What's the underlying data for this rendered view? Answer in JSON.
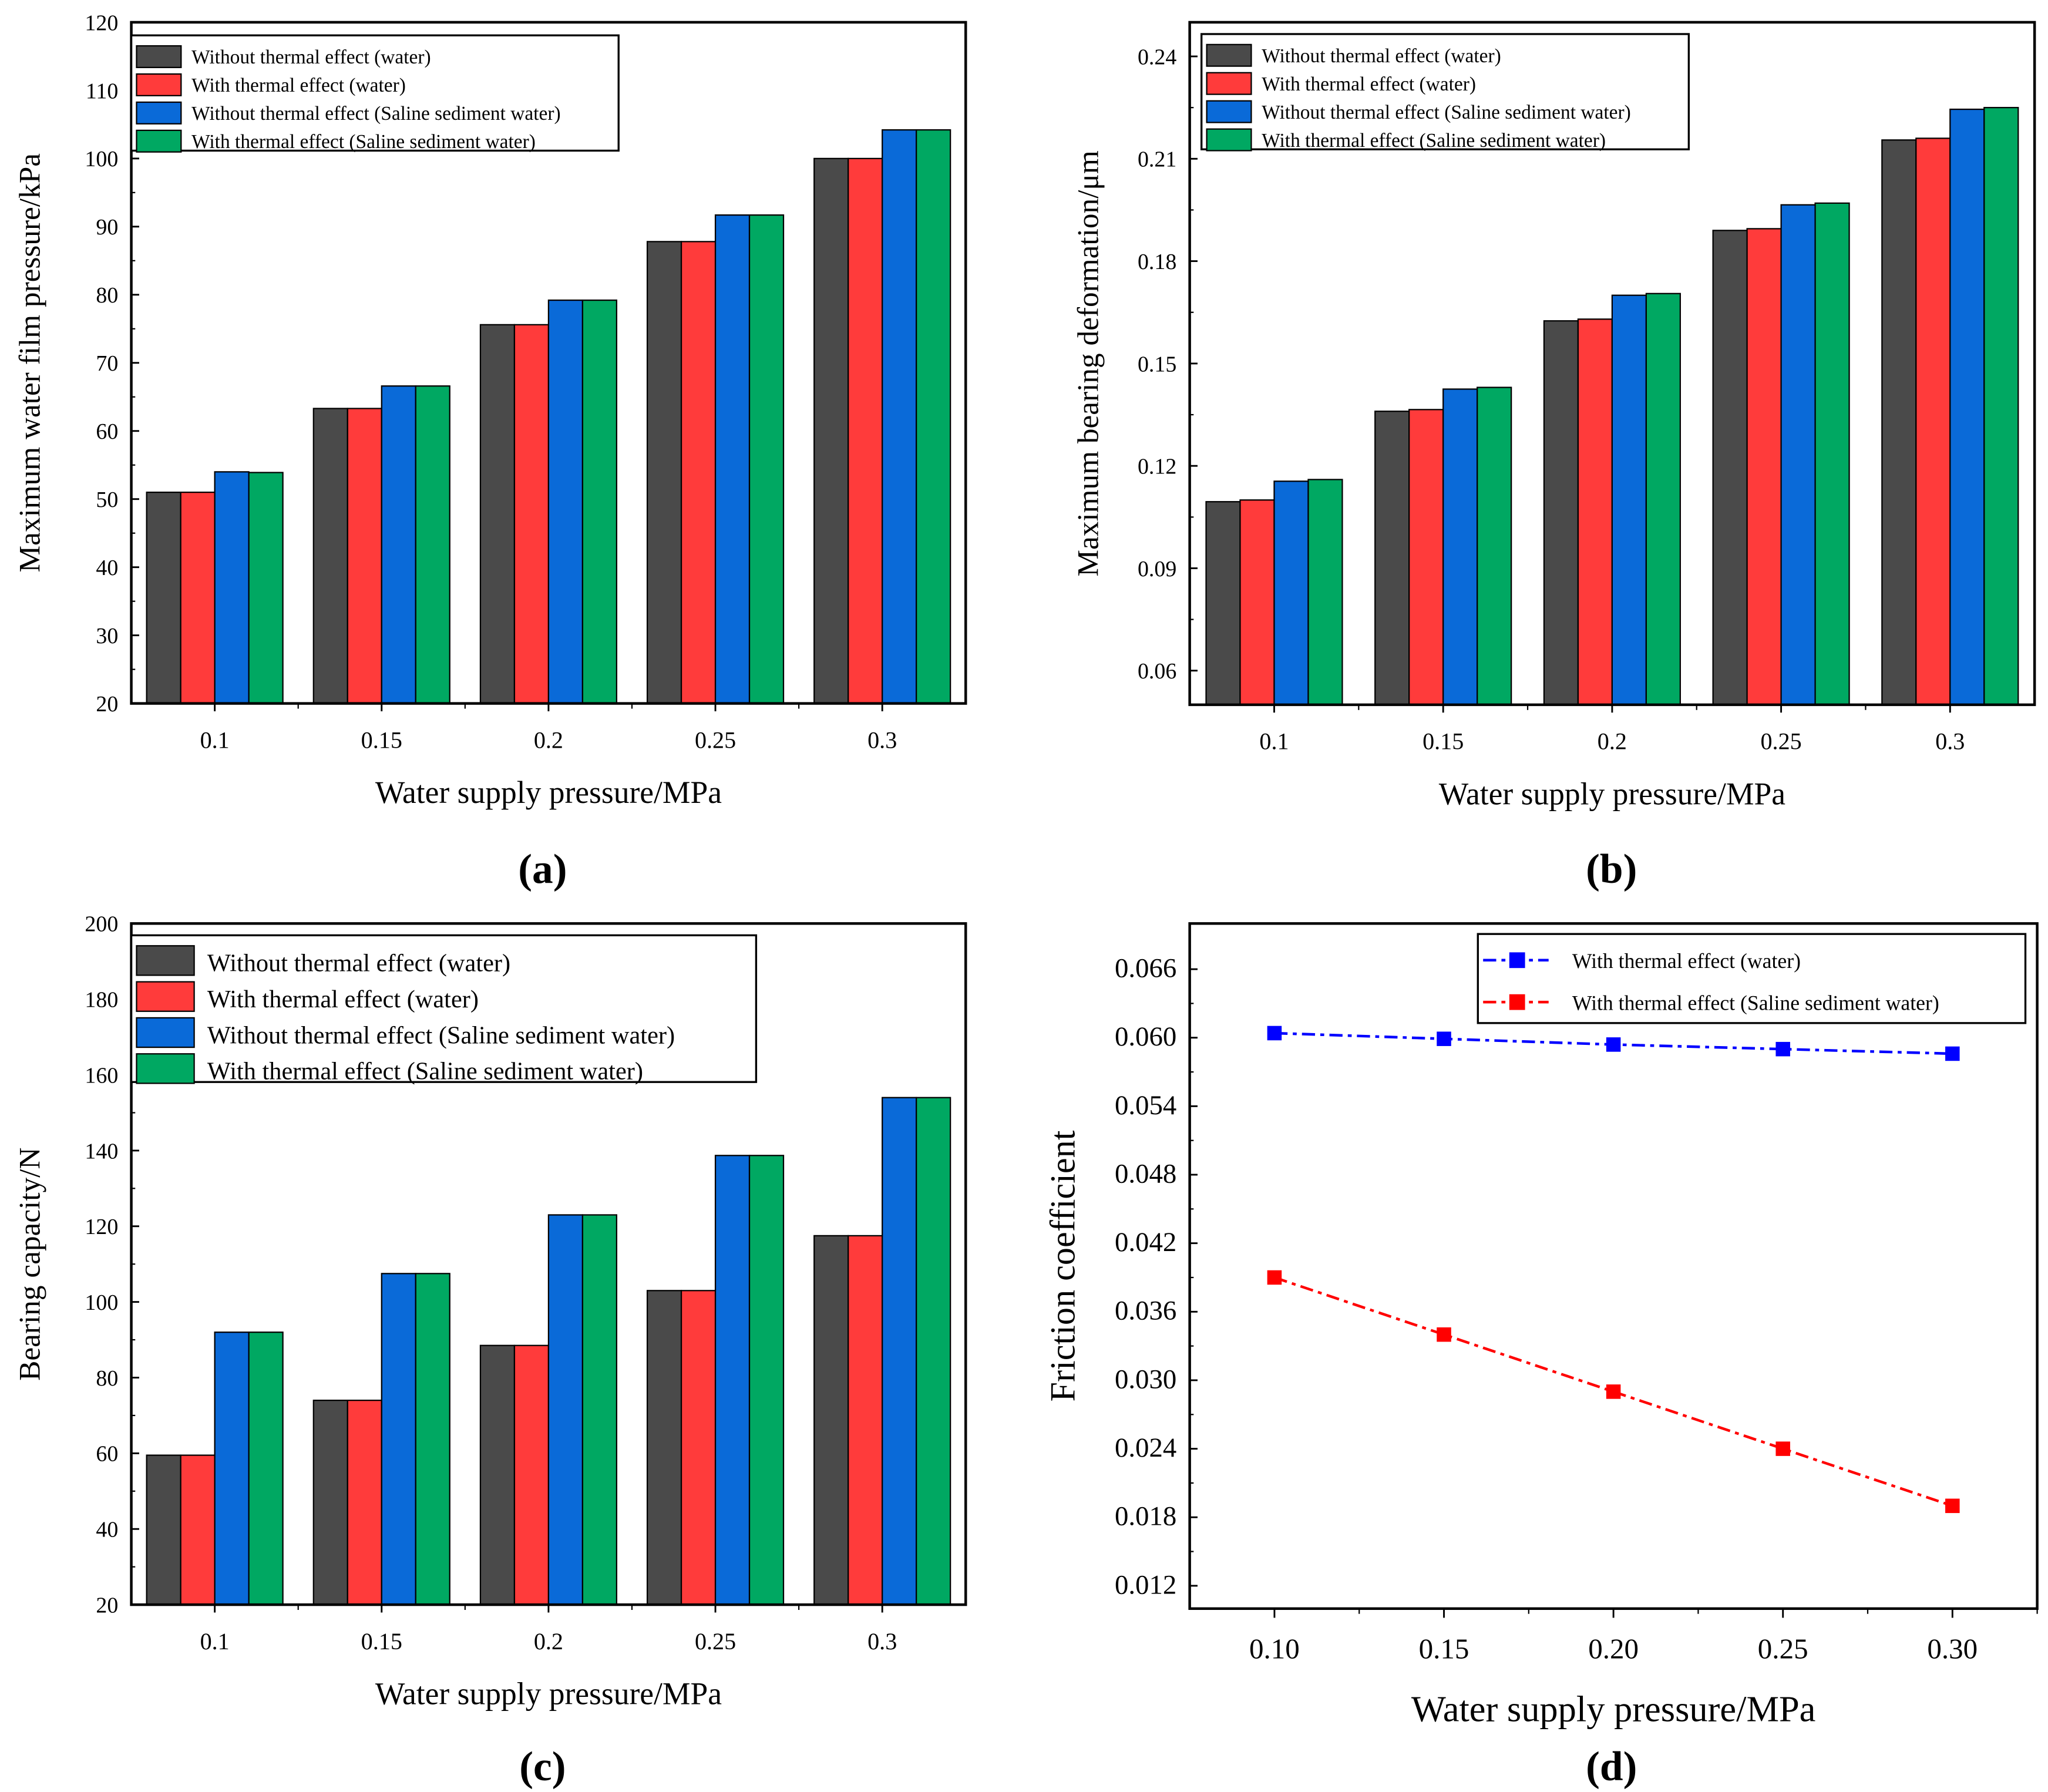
{
  "chart_data": [
    {
      "type": "bar",
      "panel_label": "(a)",
      "xlabel": "Water supply pressure/MPa",
      "ylabel": "Maximum water film pressure/kPa",
      "categories": [
        "0.1",
        "0.15",
        "0.2",
        "0.25",
        "0.3"
      ],
      "ylim": [
        20,
        120
      ],
      "yticks": [
        "20",
        "30",
        "40",
        "50",
        "60",
        "70",
        "80",
        "90",
        "100",
        "110",
        "120"
      ],
      "legend_position": "top-left",
      "series": [
        {
          "name": "Without thermal effect (water)",
          "color": "#4a4a4a",
          "values": [
            51.0,
            63.3,
            75.6,
            87.8,
            100.0
          ]
        },
        {
          "name": "With thermal effect (water)",
          "color": "#ff3b3b",
          "values": [
            51.0,
            63.3,
            75.6,
            87.8,
            100.0
          ]
        },
        {
          "name": "Without thermal effect (Saline sediment water)",
          "color": "#0a6ad8",
          "values": [
            54.0,
            66.6,
            79.2,
            91.7,
            104.2
          ]
        },
        {
          "name": "With thermal effect (Saline sediment water)",
          "color": "#00a862",
          "values": [
            53.9,
            66.6,
            79.2,
            91.7,
            104.2
          ]
        }
      ]
    },
    {
      "type": "bar",
      "panel_label": "(b)",
      "xlabel": "Water supply pressure/MPa",
      "ylabel": "Maximum bearing deformation/μm",
      "categories": [
        "0.1",
        "0.15",
        "0.2",
        "0.25",
        "0.3"
      ],
      "ylim": [
        0.05,
        0.25
      ],
      "yticks": [
        "0.06",
        "0.09",
        "0.12",
        "0.15",
        "0.18",
        "0.21",
        "0.24"
      ],
      "legend_position": "top-left",
      "series": [
        {
          "name": "Without thermal effect (water)",
          "color": "#4a4a4a",
          "values": [
            0.1095,
            0.136,
            0.1625,
            0.189,
            0.2155
          ]
        },
        {
          "name": "With thermal effect (water)",
          "color": "#ff3b3b",
          "values": [
            0.11,
            0.1365,
            0.163,
            0.1895,
            0.216
          ]
        },
        {
          "name": "Without thermal effect (Saline sediment water)",
          "color": "#0a6ad8",
          "values": [
            0.1155,
            0.1425,
            0.17,
            0.1965,
            0.2245
          ]
        },
        {
          "name": "With thermal effect (Saline sediment water)",
          "color": "#00a862",
          "values": [
            0.116,
            0.143,
            0.1705,
            0.197,
            0.225
          ]
        }
      ]
    },
    {
      "type": "bar",
      "panel_label": "(c)",
      "xlabel": "Water supply pressure/MPa",
      "ylabel": "Bearing capacity/N",
      "categories": [
        "0.1",
        "0.15",
        "0.2",
        "0.25",
        "0.3"
      ],
      "ylim": [
        20,
        200
      ],
      "yticks": [
        "20",
        "40",
        "60",
        "80",
        "100",
        "120",
        "140",
        "160",
        "180",
        "200"
      ],
      "legend_position": "top-left",
      "series": [
        {
          "name": "Without thermal effect (water)",
          "color": "#4a4a4a",
          "values": [
            59.5,
            74.0,
            88.5,
            103.0,
            117.5
          ]
        },
        {
          "name": "With thermal effect (water)",
          "color": "#ff3b3b",
          "values": [
            59.5,
            74.0,
            88.5,
            103.0,
            117.5
          ]
        },
        {
          "name": "Without thermal effect (Saline sediment water)",
          "color": "#0a6ad8",
          "values": [
            92.0,
            107.5,
            123.0,
            138.7,
            154.0
          ]
        },
        {
          "name": "With thermal effect (Saline sediment water)",
          "color": "#00a862",
          "values": [
            92.0,
            107.5,
            123.0,
            138.7,
            154.0
          ]
        }
      ]
    },
    {
      "type": "line",
      "panel_label": "(d)",
      "xlabel": "Water supply pressure/MPa",
      "ylabel": "Friction coefficient",
      "x": [
        0.1,
        0.15,
        0.2,
        0.25,
        0.3
      ],
      "xticks": [
        "0.10",
        "0.15",
        "0.20",
        "0.25",
        "0.30"
      ],
      "xlim": [
        0.075,
        0.325
      ],
      "ylim": [
        0.01,
        0.07
      ],
      "yticks": [
        "0.012",
        "0.018",
        "0.024",
        "0.030",
        "0.036",
        "0.042",
        "0.048",
        "0.054",
        "0.060",
        "0.066"
      ],
      "legend_position": "top-right",
      "series": [
        {
          "name": "With thermal effect (water)",
          "color": "#0000ff",
          "values": [
            0.0604,
            0.0599,
            0.0594,
            0.059,
            0.0586
          ]
        },
        {
          "name": "With thermal effect (Saline sediment water)",
          "color": "#ff0000",
          "values": [
            0.039,
            0.034,
            0.029,
            0.024,
            0.019
          ]
        }
      ]
    }
  ]
}
